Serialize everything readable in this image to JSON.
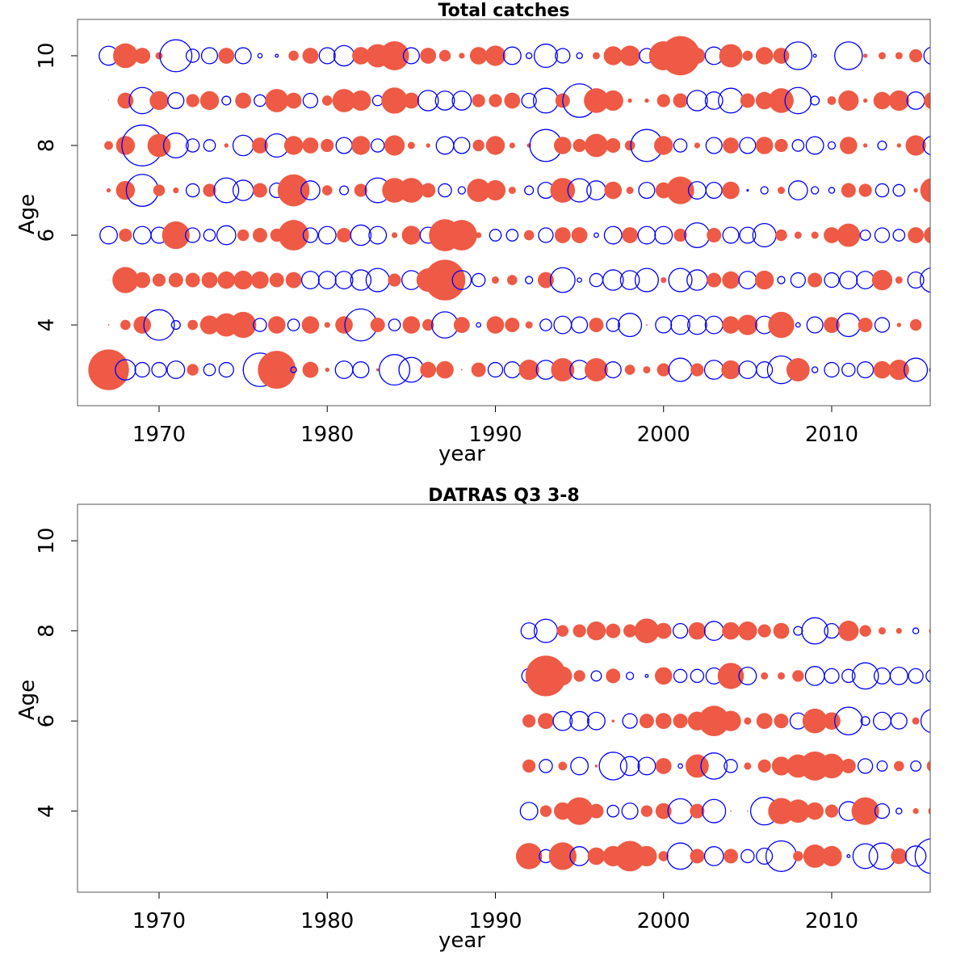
{
  "chart_data": [
    {
      "type": "bubble",
      "title": "Total catches",
      "xlabel": "year",
      "ylabel": "Age",
      "x": [
        1967,
        1968,
        1969,
        1970,
        1971,
        1972,
        1973,
        1974,
        1975,
        1976,
        1977,
        1978,
        1979,
        1980,
        1981,
        1982,
        1983,
        1984,
        1985,
        1986,
        1987,
        1988,
        1989,
        1990,
        1991,
        1992,
        1993,
        1994,
        1995,
        1996,
        1997,
        1998,
        1999,
        2000,
        2001,
        2002,
        2003,
        2004,
        2005,
        2006,
        2007,
        2008,
        2009,
        2010,
        2011,
        2012,
        2013,
        2014,
        2015,
        2016
      ],
      "y": [
        3,
        4,
        5,
        6,
        7,
        8,
        9,
        10
      ],
      "values": [
        [
          2.8,
          -1.4,
          -1,
          -1,
          -1.2,
          0.8,
          -0.8,
          -1,
          0.1,
          -2.3,
          2.6,
          -0.4,
          1.1,
          0.3,
          -1.2,
          -1.1,
          0.2,
          -2.1,
          -1.7,
          1.1,
          1.2,
          0.1,
          1,
          -1,
          -1.1,
          1.4,
          -1.3,
          1.6,
          -1.3,
          1.6,
          -1.1,
          0.7,
          0.5,
          0.9,
          -1.6,
          0.9,
          -1.3,
          1.3,
          -1.2,
          -1.1,
          -1.9,
          1.6,
          -0.4,
          -1,
          -0.9,
          -1.1,
          1.2,
          1.4,
          -1.6,
          -0.4
        ],
        [
          0.1,
          0.7,
          1.2,
          -2.1,
          -0.6,
          0.7,
          1.3,
          1.6,
          1.8,
          -0.9,
          1.2,
          -0.8,
          1.2,
          0.4,
          1.2,
          -2.2,
          1,
          -0.8,
          1.2,
          0.8,
          -1.8,
          1.1,
          -0.3,
          1.2,
          1,
          0.5,
          -0.8,
          -1.2,
          -1.1,
          1,
          -0.9,
          -1.6,
          0.1,
          -1.1,
          -1.3,
          -1.3,
          -1.2,
          1.2,
          1.4,
          -1.2,
          1.8,
          -0.3,
          -1.1,
          1.1,
          -1.6,
          1,
          -1,
          0.3,
          0.8,
          0.05
        ],
        [
          0.05,
          1.8,
          1.1,
          0.9,
          1,
          1,
          1.1,
          1.2,
          1.3,
          1.2,
          1,
          1.1,
          -1.2,
          -1.2,
          -1.2,
          -1.4,
          -1.6,
          0.9,
          -1.3,
          1.6,
          2.8,
          -1.3,
          -0.9,
          0.5,
          0.7,
          -0.5,
          1.1,
          -1.7,
          -0.3,
          -0.9,
          -1.4,
          -1.3,
          -1.6,
          0.4,
          -1.6,
          -1.4,
          1,
          1.2,
          -1.2,
          1.3,
          -0.5,
          -1,
          1,
          -1,
          -1.2,
          -1.2,
          1.4,
          0.5,
          -1.1,
          -1.7
        ],
        [
          -1.2,
          0.9,
          -1.2,
          -1.1,
          1.9,
          -1,
          -0.8,
          -1.3,
          0.8,
          1,
          0.9,
          2.1,
          -1,
          -1.2,
          1,
          -1.4,
          -1.2,
          0.4,
          1.3,
          -1.1,
          2.2,
          2.1,
          0.4,
          -0.8,
          -0.8,
          0.7,
          -1,
          1.1,
          1.1,
          -0.3,
          -1.2,
          1.1,
          -1.2,
          -1.2,
          0.9,
          -1.7,
          1,
          -1.1,
          -1.1,
          -1.6,
          0.8,
          0.5,
          0.5,
          1.1,
          1.6,
          -0.7,
          -1,
          -0.8,
          1.1,
          1.2
        ],
        [
          0.3,
          1.3,
          -2.2,
          0.8,
          0.4,
          -0.9,
          0.9,
          -1.7,
          -1.4,
          1,
          -1,
          2.2,
          -1.3,
          0.7,
          -0.6,
          0.9,
          -1.7,
          1.7,
          1.7,
          1,
          -0.9,
          -0.5,
          1.6,
          1.4,
          0.5,
          -0.6,
          -1.1,
          1.7,
          -1.6,
          -1.3,
          1.2,
          0.5,
          -1.1,
          1.1,
          1.9,
          -1.2,
          -1.1,
          1.2,
          -0.1,
          -0.5,
          0.5,
          -1.3,
          -0.5,
          -0.4,
          1,
          0.9,
          -0.9,
          -0.8,
          0.3,
          1.7
        ],
        [
          0.6,
          1.3,
          -2.8,
          1.6,
          -1.7,
          -0.9,
          -0.8,
          0.3,
          -1.4,
          1.1,
          -1.6,
          1.3,
          1.1,
          0.9,
          -1.1,
          1.3,
          -0.9,
          1.4,
          0.5,
          0.3,
          -1.2,
          -1.1,
          0.8,
          1.3,
          0.4,
          0.3,
          -2.2,
          1.2,
          0.9,
          1.6,
          1,
          0.7,
          -2.2,
          1.3,
          -0.9,
          0.4,
          -1.1,
          1.1,
          -1.1,
          1.2,
          0.9,
          -0.8,
          -1.2,
          -0.5,
          1.2,
          0.3,
          -0.6,
          0.3,
          1.4,
          -1.3
        ],
        [
          0.05,
          1.1,
          -1.8,
          1.3,
          -1.1,
          0.9,
          1.3,
          -0.6,
          1.1,
          -0.8,
          1.6,
          1.1,
          -1,
          0.7,
          1.6,
          1.4,
          -0.7,
          1.8,
          1.1,
          -1.4,
          -1.3,
          -1.3,
          0.9,
          0.9,
          1.1,
          -1,
          -1.7,
          1,
          -2.3,
          1.7,
          1.4,
          0.3,
          0.3,
          0.9,
          1,
          -1.4,
          -1.2,
          -1.7,
          1,
          1.2,
          1.7,
          -1.8,
          -0.6,
          0.6,
          1.4,
          0.3,
          1.2,
          1.4,
          -1.2,
          1.2
        ],
        [
          -1.3,
          1.7,
          1.1,
          0.5,
          -2.2,
          -0.9,
          -1.1,
          1.1,
          -1.1,
          -0.3,
          -0.2,
          0.7,
          1.1,
          -1.1,
          -1.4,
          1.2,
          1.6,
          2,
          -1.1,
          1.1,
          0.8,
          0.4,
          1.2,
          1.4,
          -1.2,
          -0.4,
          -1.6,
          -1,
          -0.4,
          0.5,
          1.3,
          1.4,
          -1,
          2,
          2.7,
          1.1,
          -1.2,
          1.6,
          0.7,
          1.2,
          1.1,
          -1.9,
          -0.2,
          0.05,
          -1.9,
          0.3,
          0.5,
          0.5,
          0.9,
          -1.2
        ]
      ],
      "colors": {
        "positive": "#ee5a45",
        "negative": "#0000ff"
      },
      "xlim": [
        1965.15,
        2015.86
      ],
      "ylim": [
        2.2,
        10.81
      ],
      "xticks": [
        1970,
        1980,
        1990,
        2000,
        2010
      ],
      "yticks": [
        4,
        6,
        8,
        10
      ],
      "grid": false
    },
    {
      "type": "bubble",
      "title": "DATRAS Q3 3-8",
      "xlabel": "year",
      "ylabel": "Age",
      "x": [
        1992,
        1993,
        1994,
        1995,
        1996,
        1997,
        1998,
        1999,
        2000,
        2001,
        2002,
        2003,
        2004,
        2005,
        2006,
        2007,
        2008,
        2009,
        2010,
        2011,
        2012,
        2013,
        2014,
        2015,
        2016
      ],
      "y": [
        3,
        4,
        5,
        6,
        7,
        8
      ],
      "values": [
        [
          1.8,
          -0.9,
          1.9,
          -1.3,
          1.2,
          1.4,
          2.1,
          1.4,
          0.7,
          -1.8,
          1,
          -1.3,
          1,
          -0.9,
          -1.1,
          -2.1,
          0.7,
          1.6,
          1.4,
          -0.2,
          -1.7,
          -1.8,
          1.1,
          -1.4,
          -2.4
        ],
        [
          -1.2,
          0.8,
          1.2,
          1.9,
          1,
          -0.8,
          -1.1,
          0.8,
          1.1,
          -1.7,
          1,
          -1.6,
          0.1,
          0.1,
          -1.9,
          1.8,
          1.6,
          1.2,
          0.9,
          -1.3,
          1.9,
          -1,
          -0.4,
          0.4,
          0.6
        ],
        [
          0.9,
          -0.9,
          0.6,
          -1.2,
          0.2,
          -1.9,
          -1.3,
          -1.2,
          1.1,
          -0.3,
          1.6,
          -1.8,
          -0.9,
          0.5,
          0.9,
          1.3,
          1.6,
          2,
          1.7,
          1,
          -1,
          -0.7,
          0.7,
          -0.7,
          0.8
        ],
        [
          0.9,
          1.1,
          -1.3,
          -1.3,
          -1.2,
          0.2,
          -1,
          1,
          1.1,
          1,
          1.3,
          2.1,
          1.4,
          0.5,
          1.1,
          1,
          -1.1,
          1.7,
          1.2,
          -1.9,
          -0.6,
          -1.2,
          -1.1,
          0.5,
          -1.6
        ],
        [
          -1,
          2.8,
          1.3,
          0.8,
          -0.7,
          1,
          -0.5,
          -0.2,
          1.2,
          -0.9,
          -0.9,
          -1.1,
          1.8,
          -1.2,
          0.5,
          0.5,
          0.8,
          -1.3,
          -1,
          -0.9,
          -1.8,
          -1.1,
          -1.2,
          -1,
          -0.9
        ],
        [
          -1.1,
          -1.6,
          0.8,
          0.9,
          1.3,
          1,
          0.9,
          1.7,
          1.1,
          -1,
          1.2,
          -1.3,
          1.2,
          1.3,
          0.9,
          1.1,
          -0.6,
          -1.8,
          -1,
          1.4,
          0.8,
          0.5,
          0.4,
          -0.4,
          0.5
        ]
      ],
      "colors": {
        "positive": "#ee5a45",
        "negative": "#0000ff"
      },
      "xlim": [
        1965.15,
        2015.86
      ],
      "ylim": [
        2.2,
        10.81
      ],
      "xticks": [
        1970,
        1980,
        1990,
        2000,
        2010
      ],
      "yticks": [
        4,
        6,
        8,
        10
      ],
      "grid": false
    }
  ]
}
